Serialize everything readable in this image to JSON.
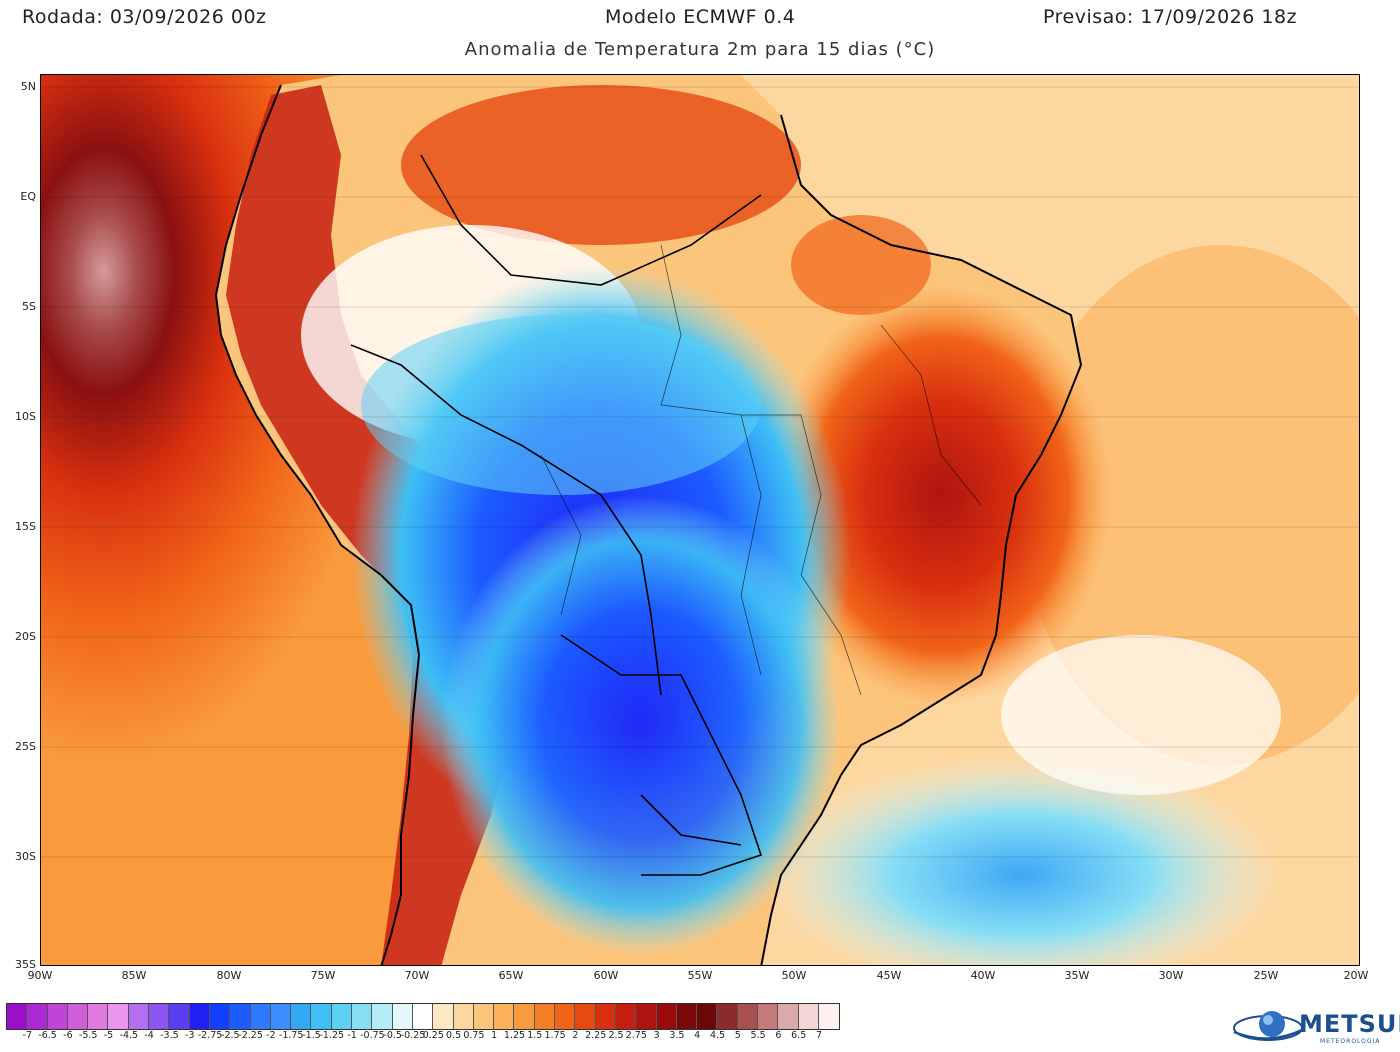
{
  "header": {
    "run": "Rodada: 03/09/2026 00z",
    "model": "Modelo ECMWF 0.4",
    "forecast": "Previsao: 17/09/2026 18z",
    "subtitle": "Anomalia de Temperatura 2m para 15 dias (°C)"
  },
  "map": {
    "lat_labels": [
      "5N",
      "EQ",
      "5S",
      "10S",
      "15S",
      "20S",
      "25S",
      "30S",
      "35S"
    ],
    "lon_labels": [
      "90W",
      "85W",
      "80W",
      "75W",
      "70W",
      "65W",
      "60W",
      "55W",
      "50W",
      "45W",
      "40W",
      "35W",
      "30W",
      "25W",
      "20W"
    ],
    "extent": {
      "lon": [
        -90,
        -20
      ],
      "lat": [
        -35,
        5
      ]
    }
  },
  "colorbar": {
    "labels": [
      "-7",
      "-6.5",
      "-6",
      "-5.5",
      "-5",
      "-4.5",
      "-4",
      "-3.5",
      "-3",
      "-2.75",
      "-2.5",
      "-2.25",
      "-2",
      "-1.75",
      "-1.5",
      "-1.25",
      "-1",
      "-0.75",
      "-0.5",
      "-0.25",
      "0.25",
      "0.5",
      "0.75",
      "1",
      "1.25",
      "1.5",
      "1.75",
      "2",
      "2.25",
      "2.5",
      "2.75",
      "3",
      "3.5",
      "4",
      "4.5",
      "5",
      "5.5",
      "6",
      "6.5",
      "7"
    ],
    "colors": [
      "#9a10c9",
      "#a92ad4",
      "#c044d6",
      "#d15ed9",
      "#e07ae0",
      "#ec95ec",
      "#b66ef0",
      "#8a55f0",
      "#5a3ef2",
      "#2020f5",
      "#1240ff",
      "#1c5cff",
      "#2d78ff",
      "#3a8eff",
      "#33a8f5",
      "#3ebff5",
      "#5ed0f5",
      "#86def5",
      "#b6ecf8",
      "#e2f8fb",
      "#ffffff",
      "#fde8c4",
      "#fdd7a0",
      "#fcc57c",
      "#fbb15a",
      "#f99a3c",
      "#f67f26",
      "#f16418",
      "#e64812",
      "#d8300f",
      "#c61d10",
      "#b01410",
      "#9a0c0c",
      "#7a0a0a",
      "#6a0808",
      "#8a2c2c",
      "#a85050",
      "#c47a7a",
      "#dca8a8",
      "#f3d6d6",
      "#fff0f0"
    ]
  },
  "logo": {
    "name": "METSUL",
    "tagline": "METEOROLOGIA"
  }
}
